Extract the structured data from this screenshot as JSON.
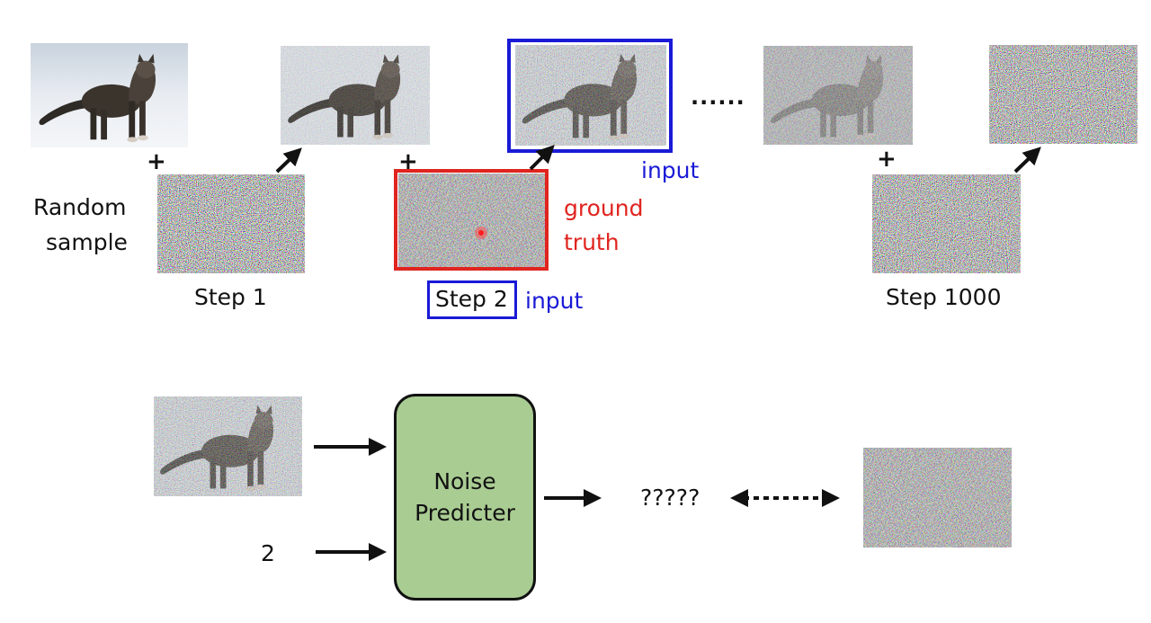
{
  "diagram": {
    "forward_process": {
      "random_sample_label": [
        "Random",
        "sample"
      ],
      "step_labels": {
        "step1": "Step 1",
        "step2": "Step 2",
        "step1000": "Step 1000"
      },
      "ellipsis": "......",
      "plus_sign": "+",
      "ground_truth_label": [
        "ground",
        "truth"
      ],
      "input_label": "input"
    },
    "training": {
      "step_number_input": "2",
      "predictor_label": [
        "Noise",
        "Predicter"
      ],
      "output_label": "?????"
    },
    "colors": {
      "highlight_blue": "#1a1ad6",
      "highlight_red": "#e0241f",
      "predictor_fill": "#a9cc92",
      "text": "#111111"
    }
  }
}
